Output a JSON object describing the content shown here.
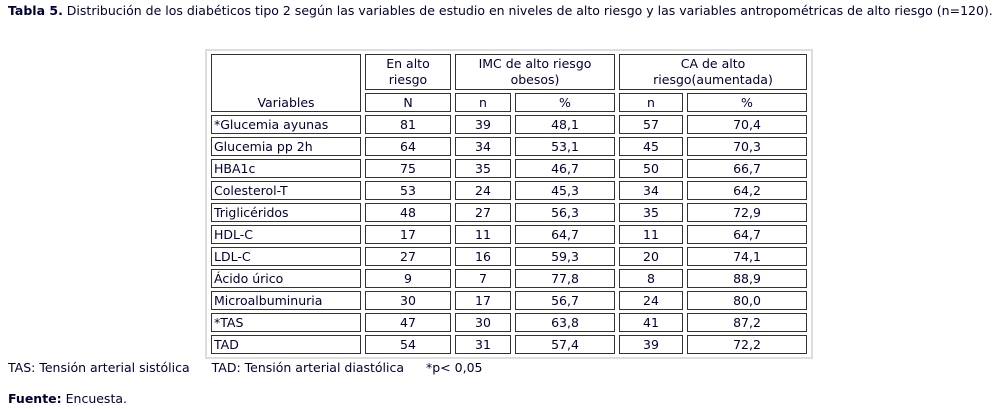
{
  "caption": {
    "label": "Tabla 5.",
    "text": " Distribución de los diabéticos tipo 2 según las variables de estudio en niveles de alto riesgo y las variables antropométricas de alto riesgo (n=120)."
  },
  "table": {
    "headers": {
      "variables": "Variables",
      "en_alto_riesgo": "En alto riesgo",
      "imc": "IMC de alto riesgo obesos)",
      "ca": "CA de alto riesgo(aumentada)",
      "N": "N",
      "n1": "n",
      "p1": "%",
      "n2": "n",
      "p2": "%"
    },
    "rows": [
      [
        "*Glucemia ayunas",
        "81",
        "39",
        "48,1",
        "57",
        "70,4"
      ],
      [
        "Glucemia pp 2h",
        "64",
        "34",
        "53,1",
        "45",
        "70,3"
      ],
      [
        "HBA1c",
        "75",
        "35",
        "46,7",
        "50",
        "66,7"
      ],
      [
        "Colesterol-T",
        "53",
        "24",
        "45,3",
        "34",
        "64,2"
      ],
      [
        "Triglicéridos",
        "48",
        "27",
        "56,3",
        "35",
        "72,9"
      ],
      [
        "HDL-C",
        "17",
        "11",
        "64,7",
        "11",
        "64,7"
      ],
      [
        "LDL-C",
        "27",
        "16",
        "59,3",
        "20",
        "74,1"
      ],
      [
        "Ácido úrico",
        "9",
        "7",
        "77,8",
        "8",
        "88,9"
      ],
      [
        "Microalbuminuria",
        "30",
        "17",
        "56,7",
        "24",
        "80,0"
      ],
      [
        "*TAS",
        "47",
        "30",
        "63,8",
        "41",
        "87,2"
      ],
      [
        "TAD",
        "54",
        "31",
        "57,4",
        "39",
        "72,2"
      ]
    ]
  },
  "footnotes": [
    "TAS: Tensión arterial sistólica",
    "TAD: Tensión arterial diastólica",
    "*p< 0,05"
  ],
  "source": {
    "label": "Fuente:",
    "text": " Encuesta."
  }
}
